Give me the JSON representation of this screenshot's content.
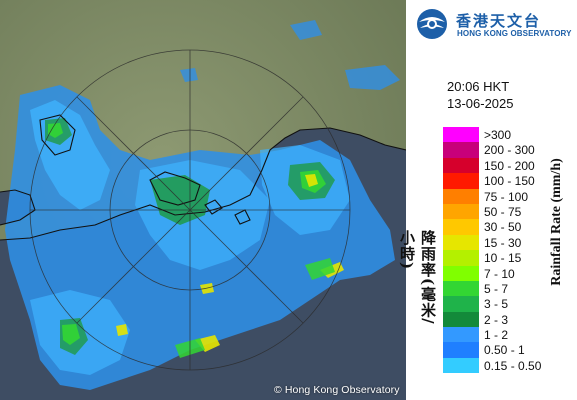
{
  "map": {
    "copyright": "© Hong Kong Observatory"
  },
  "header": {
    "logo_chinese": "香港天文台",
    "logo_english": "HONG KONG OBSERVATORY",
    "time": "20:06 HKT",
    "date": "13-06-2025"
  },
  "legend": {
    "title_chinese": "降雨率(毫米/小時)",
    "title_english": "Rainfall Rate (mm/h)",
    "items": [
      {
        "label": ">300",
        "color": "#ff00ff"
      },
      {
        "label": "200 - 300",
        "color": "#c8007a"
      },
      {
        "label": "150 - 200",
        "color": "#d6002c"
      },
      {
        "label": "100 - 150",
        "color": "#ff1a00"
      },
      {
        "label": "75 - 100",
        "color": "#ff7f00"
      },
      {
        "label": "50 - 75",
        "color": "#ffa500"
      },
      {
        "label": "30 - 50",
        "color": "#ffc800"
      },
      {
        "label": "15 - 30",
        "color": "#e6e600"
      },
      {
        "label": "10 - 15",
        "color": "#b4f000"
      },
      {
        "label": "7 - 10",
        "color": "#80ff00"
      },
      {
        "label": "5 - 7",
        "color": "#33d633"
      },
      {
        "label": "3 - 5",
        "color": "#1fb34a"
      },
      {
        "label": "2 - 3",
        "color": "#138a3a"
      },
      {
        "label": "1 - 2",
        "color": "#3399ff"
      },
      {
        "label": "0.50 - 1",
        "color": "#1f7fff"
      },
      {
        "label": "0.15 - 0.50",
        "color": "#33ccff"
      }
    ]
  }
}
